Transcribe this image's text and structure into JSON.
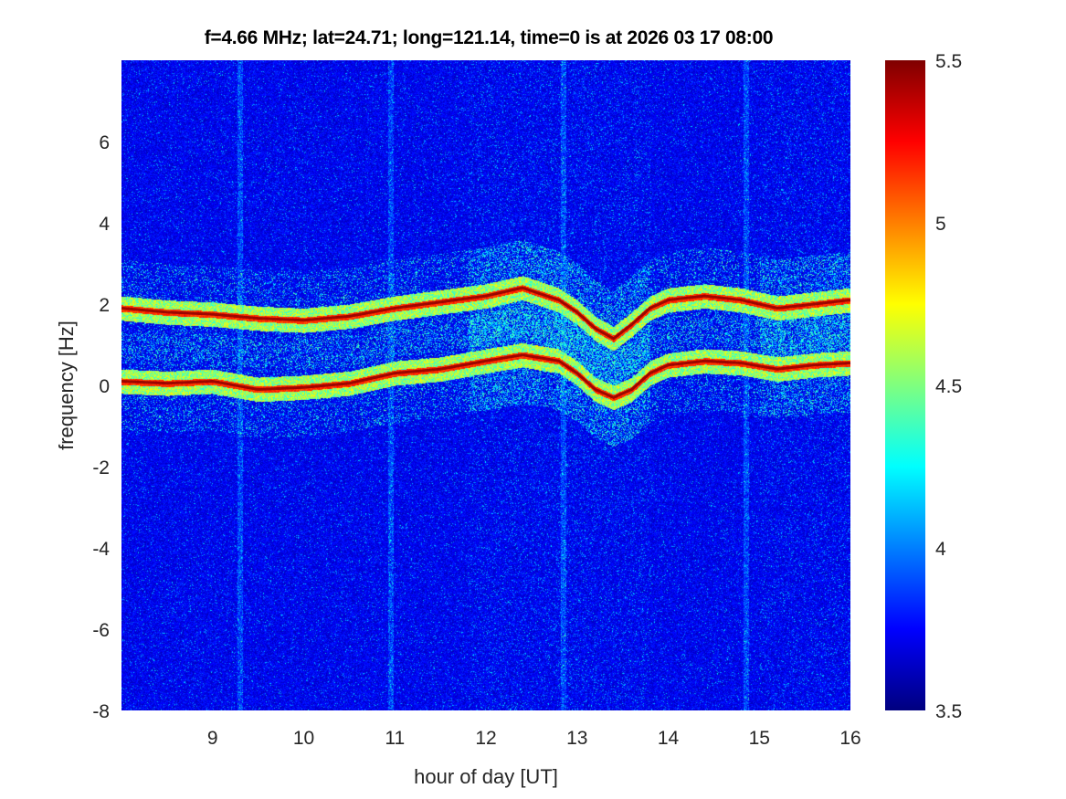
{
  "chart_data": {
    "type": "heatmap",
    "title": "f=4.66 MHz;  lat=24.71; long=121.14, time=0 is at 2026 03 17 08:00",
    "xlabel": "hour of day [UT]",
    "ylabel": "frequency [Hz]",
    "xlim": [
      8,
      16
    ],
    "ylim": [
      -8,
      8
    ],
    "xticks": [
      9,
      10,
      11,
      12,
      13,
      14,
      15,
      16
    ],
    "yticks": [
      -8,
      -6,
      -4,
      -2,
      0,
      2,
      4,
      6
    ],
    "colormap": "jet",
    "colorbar": {
      "range": [
        3.5,
        5.5
      ],
      "ticks": [
        "3.5",
        "4",
        "4.5",
        "5",
        "5.5"
      ],
      "tick_values": [
        3.5,
        4,
        4.5,
        5,
        5.5
      ]
    },
    "background_level": 3.75,
    "traces": [
      {
        "name": "upper-trace",
        "level": 5.5,
        "x": [
          8,
          8.5,
          9,
          9.5,
          10,
          10.5,
          11,
          11.5,
          12,
          12.4,
          12.8,
          13,
          13.2,
          13.4,
          13.6,
          13.8,
          14,
          14.4,
          14.8,
          15.2,
          15.6,
          16
        ],
        "y": [
          1.9,
          1.8,
          1.75,
          1.65,
          1.6,
          1.7,
          1.9,
          2.05,
          2.2,
          2.4,
          2.1,
          1.8,
          1.4,
          1.15,
          1.5,
          1.9,
          2.1,
          2.2,
          2.1,
          1.9,
          2.0,
          2.1
        ]
      },
      {
        "name": "lower-trace",
        "level": 5.5,
        "x": [
          8,
          8.5,
          9,
          9.5,
          10,
          10.5,
          11,
          11.5,
          12,
          12.4,
          12.8,
          13,
          13.2,
          13.4,
          13.6,
          13.8,
          14,
          14.4,
          14.8,
          15.2,
          15.6,
          16
        ],
        "y": [
          0.1,
          0.05,
          0.1,
          -0.1,
          -0.05,
          0.05,
          0.3,
          0.4,
          0.6,
          0.75,
          0.6,
          0.3,
          -0.1,
          -0.3,
          -0.1,
          0.3,
          0.5,
          0.6,
          0.55,
          0.4,
          0.5,
          0.55
        ]
      }
    ],
    "vertical_stripes_hours": [
      9.3,
      10.95,
      12.85,
      14.85
    ]
  }
}
